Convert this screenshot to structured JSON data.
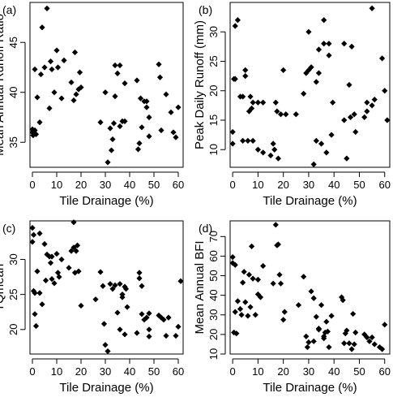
{
  "chart_data": [
    {
      "type": "scatter",
      "panel_label": "(a)",
      "xlabel": "Tile Drainage (%)",
      "ylabel": "Mean Annual Runoff Ratio",
      "xlim": [
        -1,
        62
      ],
      "ylim": [
        32.5,
        49
      ],
      "xticks": [
        0,
        10,
        20,
        30,
        40,
        50,
        60
      ],
      "yticks": [
        35,
        40,
        45
      ],
      "points": [
        [
          0,
          36.0
        ],
        [
          0,
          36.3
        ],
        [
          0.3,
          35.7
        ],
        [
          0.5,
          35.9
        ],
        [
          1,
          36.2
        ],
        [
          1,
          42.3
        ],
        [
          1.5,
          35.8
        ],
        [
          2,
          39.5
        ],
        [
          3,
          37.0
        ],
        [
          3.5,
          41.8
        ],
        [
          4,
          46.5
        ],
        [
          5,
          42.5
        ],
        [
          6,
          48.4
        ],
        [
          7,
          38.4
        ],
        [
          7.5,
          43.1
        ],
        [
          8,
          42.3
        ],
        [
          9,
          40.0
        ],
        [
          10,
          44.2
        ],
        [
          10.5,
          42.5
        ],
        [
          12,
          39.4
        ],
        [
          13,
          43.2
        ],
        [
          16,
          41.0
        ],
        [
          17,
          39.2
        ],
        [
          17.5,
          44.0
        ],
        [
          18,
          39.8
        ],
        [
          19,
          40.3
        ],
        [
          19.5,
          42.0
        ],
        [
          20,
          40.5
        ],
        [
          28,
          37.0
        ],
        [
          30,
          40.0
        ],
        [
          31,
          33.0
        ],
        [
          32,
          36.4
        ],
        [
          32.5,
          34.2
        ],
        [
          33,
          35.3
        ],
        [
          33.5,
          36.9
        ],
        [
          34,
          39.6
        ],
        [
          34,
          42.7
        ],
        [
          35,
          41.9
        ],
        [
          36,
          36.6
        ],
        [
          36,
          42.7
        ],
        [
          37,
          37.1
        ],
        [
          38,
          37.1
        ],
        [
          38,
          40.9
        ],
        [
          43,
          41.2
        ],
        [
          43.5,
          34.3
        ],
        [
          44,
          34.9
        ],
        [
          44.5,
          39.4
        ],
        [
          45,
          36.5
        ],
        [
          46,
          39.1
        ],
        [
          47,
          39.1
        ],
        [
          47,
          38.5
        ],
        [
          48,
          37.5
        ],
        [
          48,
          35.6
        ],
        [
          52,
          42.8
        ],
        [
          52.5,
          41.5
        ],
        [
          53,
          36.2
        ],
        [
          55,
          39.8
        ],
        [
          57,
          38.0
        ],
        [
          58,
          36.0
        ],
        [
          59,
          35.5
        ],
        [
          60,
          38.5
        ]
      ]
    },
    {
      "type": "scatter",
      "panel_label": "(b)",
      "xlabel": "Tile Drainage (%)",
      "ylabel": "Peak Daily Runoff (mm)",
      "xlim": [
        -1,
        62
      ],
      "ylim": [
        7,
        35
      ],
      "xticks": [
        0,
        10,
        20,
        30,
        40,
        50,
        60
      ],
      "yticks": [
        10,
        15,
        20,
        25,
        30
      ],
      "points": [
        [
          0,
          11.0
        ],
        [
          0,
          13.0
        ],
        [
          0.5,
          22.0
        ],
        [
          1,
          22.0
        ],
        [
          1,
          31.0
        ],
        [
          2,
          32.0
        ],
        [
          3,
          19.0
        ],
        [
          4,
          11.5
        ],
        [
          4,
          19.0
        ],
        [
          5,
          22.5
        ],
        [
          5,
          23.5
        ],
        [
          6,
          11.5
        ],
        [
          6.5,
          16.5
        ],
        [
          7,
          19.0
        ],
        [
          7.5,
          17.0
        ],
        [
          8,
          11.5
        ],
        [
          8,
          18.0
        ],
        [
          10,
          10.0
        ],
        [
          10,
          18.0
        ],
        [
          12,
          9.5
        ],
        [
          12,
          18.0
        ],
        [
          15,
          9.0
        ],
        [
          16,
          11.0
        ],
        [
          16.5,
          10.0
        ],
        [
          17,
          18.0
        ],
        [
          17.5,
          16.5
        ],
        [
          18,
          8.5
        ],
        [
          19,
          16.0
        ],
        [
          20,
          23.5
        ],
        [
          21,
          16.0
        ],
        [
          25,
          16.0
        ],
        [
          28,
          19.5
        ],
        [
          29,
          23.0
        ],
        [
          30,
          23.5
        ],
        [
          30,
          30.0
        ],
        [
          31,
          24.0
        ],
        [
          32,
          7.5
        ],
        [
          33,
          11.5
        ],
        [
          33,
          21.5
        ],
        [
          34,
          23.0
        ],
        [
          34,
          27.0
        ],
        [
          35,
          11.0
        ],
        [
          36,
          28.0
        ],
        [
          36,
          32.0
        ],
        [
          37,
          9.5
        ],
        [
          38,
          26.0
        ],
        [
          38,
          28.0
        ],
        [
          39,
          12.5
        ],
        [
          39.5,
          18.0
        ],
        [
          44,
          15.0
        ],
        [
          44,
          28.0
        ],
        [
          45,
          8.5
        ],
        [
          46,
          21.0
        ],
        [
          46.5,
          15.5
        ],
        [
          47,
          27.5
        ],
        [
          48,
          16.0
        ],
        [
          48.5,
          13.0
        ],
        [
          52,
          15.5
        ],
        [
          53,
          16.5
        ],
        [
          53,
          18.0
        ],
        [
          55,
          34.0
        ],
        [
          55,
          17.5
        ],
        [
          56,
          18.5
        ],
        [
          59,
          25.5
        ],
        [
          60,
          20.0
        ],
        [
          61,
          15.0
        ]
      ]
    },
    {
      "type": "scatter",
      "panel_label": "(c)",
      "xlabel": "Tile Drainage (%)",
      "ylabel": "TQmean",
      "xlim": [
        -1,
        62
      ],
      "ylim": [
        16.5,
        35.5
      ],
      "xticks": [
        0,
        10,
        20,
        30,
        40,
        50,
        60
      ],
      "yticks": [
        20,
        25,
        30
      ],
      "points": [
        [
          0,
          32.5
        ],
        [
          0,
          34.5
        ],
        [
          0.5,
          33.5
        ],
        [
          0.5,
          25.5
        ],
        [
          1,
          22.2
        ],
        [
          1,
          25.2
        ],
        [
          1.5,
          20.5
        ],
        [
          2,
          28.3
        ],
        [
          3,
          25.2
        ],
        [
          3,
          33.7
        ],
        [
          4,
          23.6
        ],
        [
          5,
          32.2
        ],
        [
          5.5,
          27.0
        ],
        [
          6,
          30.7
        ],
        [
          7,
          30.4
        ],
        [
          7.5,
          29.5
        ],
        [
          8,
          30.4
        ],
        [
          8,
          27.2
        ],
        [
          9,
          26.6
        ],
        [
          10,
          30.8
        ],
        [
          10.5,
          28.1
        ],
        [
          11,
          27.5
        ],
        [
          12,
          30.0
        ],
        [
          15,
          28.8
        ],
        [
          16,
          31.2
        ],
        [
          17,
          31.7
        ],
        [
          17,
          35.3
        ],
        [
          17.5,
          28.1
        ],
        [
          18,
          31.2
        ],
        [
          18.5,
          32.0
        ],
        [
          19,
          28.3
        ],
        [
          20,
          23.4
        ],
        [
          26,
          24.3
        ],
        [
          28,
          28.2
        ],
        [
          29,
          26.2
        ],
        [
          29.5,
          20.8
        ],
        [
          30,
          17.8
        ],
        [
          31,
          16.9
        ],
        [
          32,
          26.5
        ],
        [
          33,
          25.8
        ],
        [
          34,
          26.3
        ],
        [
          35,
          22.4
        ],
        [
          36,
          20.0
        ],
        [
          36,
          26.5
        ],
        [
          37,
          25.0
        ],
        [
          37,
          24.6
        ],
        [
          38,
          19.3
        ],
        [
          38,
          26.1
        ],
        [
          38.5,
          25.8
        ],
        [
          39,
          23.2
        ],
        [
          43,
          19.5
        ],
        [
          44,
          27.3
        ],
        [
          44,
          28.1
        ],
        [
          45,
          22.2
        ],
        [
          45,
          26.2
        ],
        [
          46,
          21.4
        ],
        [
          47,
          21.7
        ],
        [
          48,
          22.3
        ],
        [
          48,
          20.0
        ],
        [
          48,
          19.0
        ],
        [
          52,
          22.0
        ],
        [
          53,
          21.7
        ],
        [
          54,
          21.4
        ],
        [
          55,
          19.1
        ],
        [
          56,
          21.7
        ],
        [
          59,
          19.1
        ],
        [
          60,
          20.4
        ],
        [
          61,
          26.9
        ]
      ]
    },
    {
      "type": "scatter",
      "panel_label": "(d)",
      "xlabel": "Tile Drainage (%)",
      "ylabel": "Mean Annual BFI",
      "xlim": [
        -1,
        62
      ],
      "ylim": [
        10,
        78
      ],
      "xticks": [
        0,
        10,
        20,
        30,
        40,
        50,
        60
      ],
      "yticks": [
        10,
        20,
        30,
        40,
        50,
        60,
        70
      ],
      "points": [
        [
          0,
          56.5
        ],
        [
          0,
          59.5
        ],
        [
          0.5,
          21.0
        ],
        [
          1,
          31.5
        ],
        [
          1,
          55.5
        ],
        [
          1.5,
          20.5
        ],
        [
          2,
          37.0
        ],
        [
          3,
          33.0
        ],
        [
          3.5,
          30.0
        ],
        [
          4,
          46.5
        ],
        [
          4.5,
          52.0
        ],
        [
          5,
          36.5
        ],
        [
          6,
          29.5
        ],
        [
          6.5,
          50.5
        ],
        [
          7,
          34.0
        ],
        [
          7.5,
          65.0
        ],
        [
          8,
          48.5
        ],
        [
          9,
          30.0
        ],
        [
          10,
          48.0
        ],
        [
          10,
          40.5
        ],
        [
          11,
          39.0
        ],
        [
          12,
          55.0
        ],
        [
          16,
          46.0
        ],
        [
          17,
          76.0
        ],
        [
          17.5,
          65.5
        ],
        [
          18,
          66.0
        ],
        [
          18.5,
          50.5
        ],
        [
          19,
          46.0
        ],
        [
          20,
          27.5
        ],
        [
          20.5,
          31.5
        ],
        [
          26,
          35.0
        ],
        [
          28,
          49.5
        ],
        [
          29,
          19.0
        ],
        [
          29.5,
          13.5
        ],
        [
          30,
          16.0
        ],
        [
          31,
          42.0
        ],
        [
          32,
          38.5
        ],
        [
          32,
          16.5
        ],
        [
          33,
          29.0
        ],
        [
          34,
          23.0
        ],
        [
          34,
          22.5
        ],
        [
          35,
          35.0
        ],
        [
          36,
          19.0
        ],
        [
          36,
          18.0
        ],
        [
          36.5,
          21.0
        ],
        [
          37,
          26.5
        ],
        [
          37.5,
          21.5
        ],
        [
          38,
          13.5
        ],
        [
          39,
          29.5
        ],
        [
          43,
          39.0
        ],
        [
          43.5,
          37.5
        ],
        [
          44,
          15.5
        ],
        [
          44.5,
          20.5
        ],
        [
          45,
          22.0
        ],
        [
          46,
          15.5
        ],
        [
          47,
          12.5
        ],
        [
          47.5,
          30.5
        ],
        [
          48,
          15.0
        ],
        [
          48.5,
          21.0
        ],
        [
          52,
          20.0
        ],
        [
          53,
          18.5
        ],
        [
          54,
          16.5
        ],
        [
          55,
          18.5
        ],
        [
          56,
          15.0
        ],
        [
          58,
          13.5
        ],
        [
          59,
          12.5
        ],
        [
          60,
          25.0
        ]
      ]
    }
  ]
}
